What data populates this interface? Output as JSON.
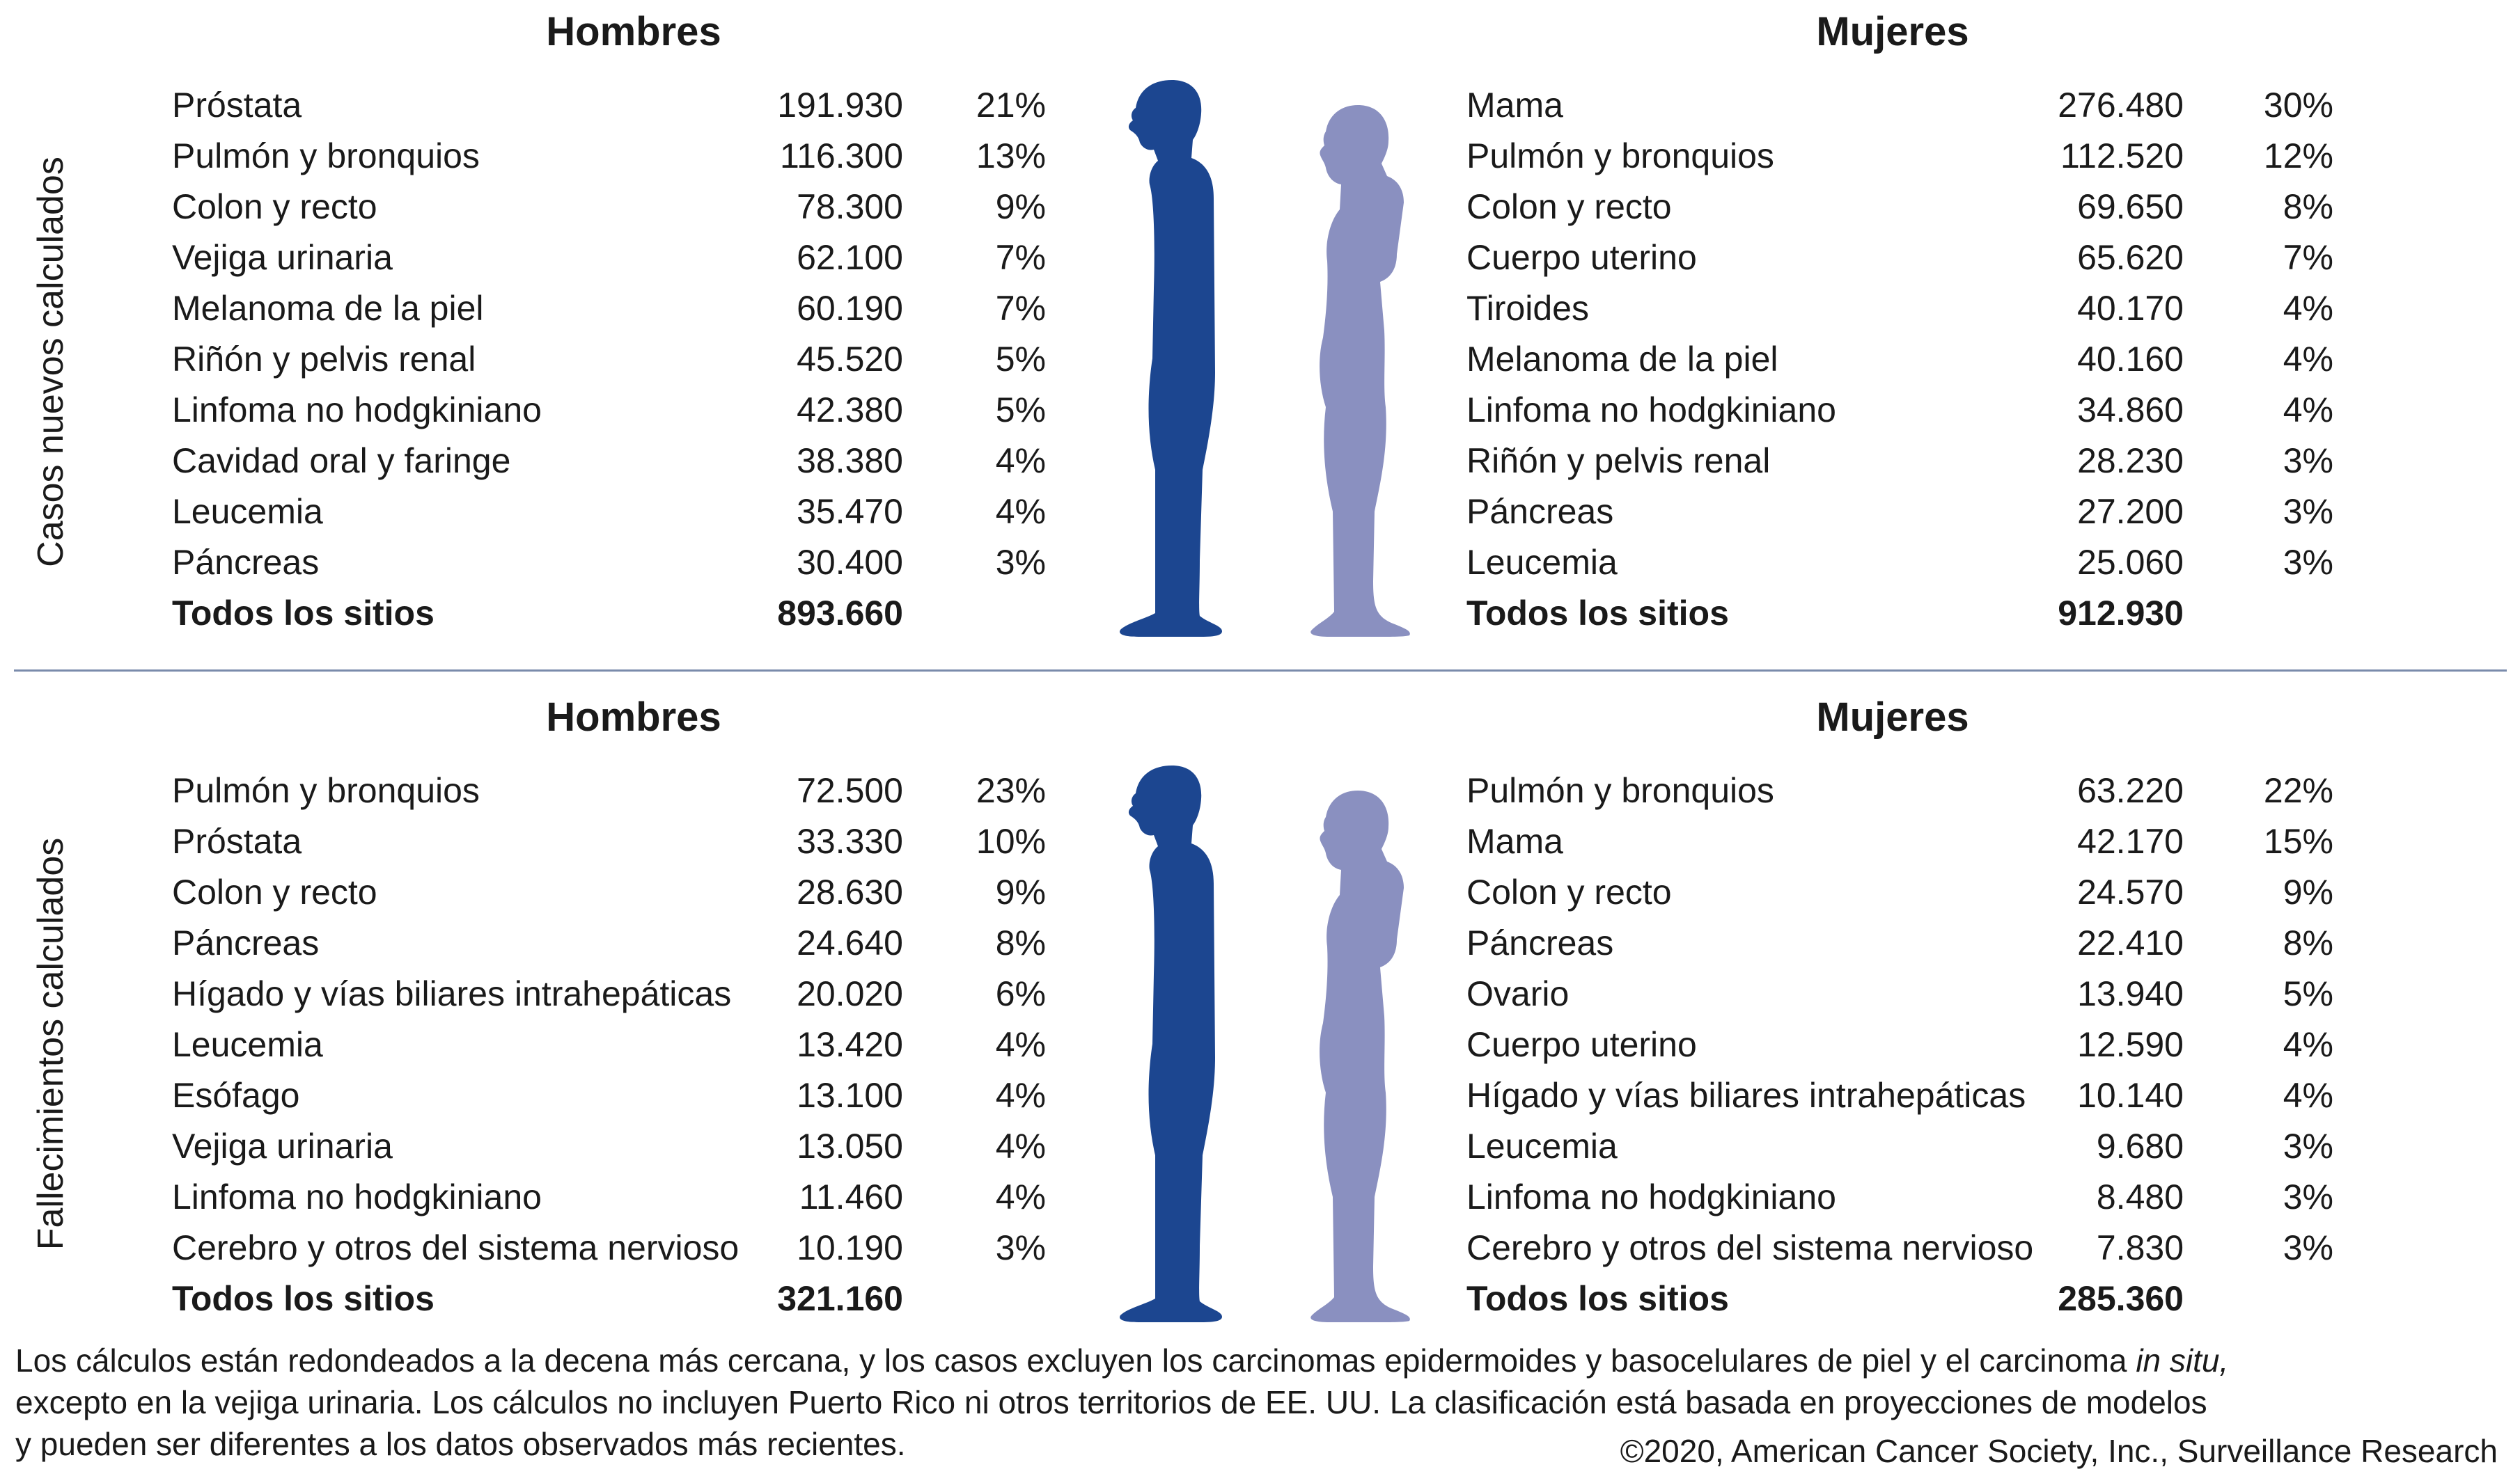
{
  "new_cases": {
    "side_label": "Casos nuevos calculados",
    "men": {
      "heading": "Hombres",
      "rows": [
        {
          "site": "Próstata",
          "count": "191.930",
          "pct": "21%"
        },
        {
          "site": "Pulmón y bronquios",
          "count": "116.300",
          "pct": "13%"
        },
        {
          "site": "Colon y recto",
          "count": "78.300",
          "pct": "9%"
        },
        {
          "site": "Vejiga urinaria",
          "count": "62.100",
          "pct": "7%"
        },
        {
          "site": "Melanoma de la piel",
          "count": "60.190",
          "pct": "7%"
        },
        {
          "site": "Riñón y pelvis renal",
          "count": "45.520",
          "pct": "5%"
        },
        {
          "site": "Linfoma no hodgkiniano",
          "count": "42.380",
          "pct": "5%"
        },
        {
          "site": "Cavidad oral y faringe",
          "count": "38.380",
          "pct": "4%"
        },
        {
          "site": "Leucemia",
          "count": "35.470",
          "pct": "4%"
        },
        {
          "site": "Páncreas",
          "count": "30.400",
          "pct": "3%"
        }
      ],
      "total": {
        "site": "Todos los sitios",
        "count": "893.660"
      }
    },
    "women": {
      "heading": "Mujeres",
      "rows": [
        {
          "site": "Mama",
          "count": "276.480",
          "pct": "30%"
        },
        {
          "site": "Pulmón y bronquios",
          "count": "112.520",
          "pct": "12%"
        },
        {
          "site": "Colon y recto",
          "count": "69.650",
          "pct": "8%"
        },
        {
          "site": "Cuerpo uterino",
          "count": "65.620",
          "pct": "7%"
        },
        {
          "site": "Tiroides",
          "count": "40.170",
          "pct": "4%"
        },
        {
          "site": "Melanoma de la piel",
          "count": "40.160",
          "pct": "4%"
        },
        {
          "site": "Linfoma no hodgkiniano",
          "count": "34.860",
          "pct": "4%"
        },
        {
          "site": "Riñón y pelvis renal",
          "count": "28.230",
          "pct": "3%"
        },
        {
          "site": "Páncreas",
          "count": "27.200",
          "pct": "3%"
        },
        {
          "site": "Leucemia",
          "count": "25.060",
          "pct": "3%"
        }
      ],
      "total": {
        "site": "Todos los sitios",
        "count": "912.930"
      }
    }
  },
  "deaths": {
    "side_label": "Fallecimientos calculados",
    "men": {
      "heading": "Hombres",
      "rows": [
        {
          "site": "Pulmón y bronquios",
          "count": "72.500",
          "pct": "23%"
        },
        {
          "site": "Próstata",
          "count": "33.330",
          "pct": "10%"
        },
        {
          "site": "Colon y recto",
          "count": "28.630",
          "pct": "9%"
        },
        {
          "site": "Páncreas",
          "count": "24.640",
          "pct": "8%"
        },
        {
          "site": "Hígado y vías biliares intrahepáticas",
          "count": "20.020",
          "pct": "6%"
        },
        {
          "site": "Leucemia",
          "count": "13.420",
          "pct": "4%"
        },
        {
          "site": "Esófago",
          "count": "13.100",
          "pct": "4%"
        },
        {
          "site": "Vejiga urinaria",
          "count": "13.050",
          "pct": "4%"
        },
        {
          "site": "Linfoma no hodgkiniano",
          "count": "11.460",
          "pct": "4%"
        },
        {
          "site": "Cerebro y otros del sistema nervioso",
          "count": "10.190",
          "pct": "3%"
        }
      ],
      "total": {
        "site": "Todos los sitios",
        "count": "321.160"
      }
    },
    "women": {
      "heading": "Mujeres",
      "rows": [
        {
          "site": "Pulmón y bronquios",
          "count": "63.220",
          "pct": "22%"
        },
        {
          "site": "Mama",
          "count": "42.170",
          "pct": "15%"
        },
        {
          "site": "Colon y recto",
          "count": "24.570",
          "pct": "9%"
        },
        {
          "site": "Páncreas",
          "count": "22.410",
          "pct": "8%"
        },
        {
          "site": "Ovario",
          "count": "13.940",
          "pct": "5%"
        },
        {
          "site": "Cuerpo uterino",
          "count": "12.590",
          "pct": "4%"
        },
        {
          "site": "Hígado y vías biliares intrahepáticas",
          "count": "10.140",
          "pct": "4%"
        },
        {
          "site": "Leucemia",
          "count": "9.680",
          "pct": "3%"
        },
        {
          "site": "Linfoma no hodgkiniano",
          "count": "8.480",
          "pct": "3%"
        },
        {
          "site": "Cerebro y otros del sistema nervioso",
          "count": "7.830",
          "pct": "3%"
        }
      ],
      "total": {
        "site": "Todos los sitios",
        "count": "285.360"
      }
    }
  },
  "footnote": {
    "before_italic": "Los cálculos están redondeados a la decena más cercana, y los casos excluyen los carcinomas epidermoides y basocelulares de piel y el carcinoma ",
    "italic": "in situ,",
    "line2": "excepto en la vejiga urinaria. Los cálculos no incluyen Puerto Rico ni otros territorios de EE. UU. La clasificación está basada en proyecciones de modelos",
    "line3": "y pueden ser diferentes a los datos observados más recientes."
  },
  "copyright": "©2020, American Cancer Society, Inc., Surveillance Research",
  "colors": {
    "men_figure": "#1c4690",
    "women_figure": "#8a90c0",
    "divider": "#7a8bab"
  }
}
